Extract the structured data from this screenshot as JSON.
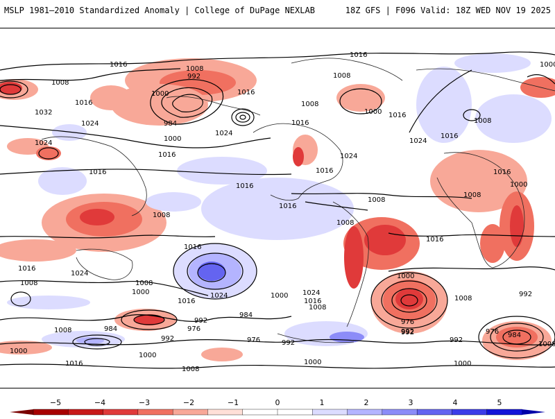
{
  "header": {
    "left_title": "MSLP 1981–2010 Standardized Anomaly | College of DuPage NEXLAB",
    "right_title": "18Z GFS | F096 Valid: 18Z WED NOV 19 2025"
  },
  "map": {
    "isobar_labels": [
      "1016",
      "1008",
      "992",
      "1000",
      "984",
      "1016",
      "1032",
      "1024",
      "1024",
      "1016",
      "1008",
      "1000",
      "1024",
      "1016",
      "1016",
      "1008",
      "1016",
      "1024",
      "1016",
      "1016",
      "1000",
      "1008",
      "1016",
      "1024",
      "1008",
      "1016",
      "1008",
      "1016",
      "1008",
      "1016",
      "1024",
      "1008",
      "1024",
      "1016",
      "1000",
      "1008",
      "1016",
      "1000",
      "992",
      "984",
      "976",
      "992",
      "984",
      "1016",
      "1008",
      "1024",
      "1016",
      "1008",
      "1000",
      "992",
      "1008",
      "976",
      "992",
      "1000",
      "1016",
      "976",
      "992",
      "1000",
      "1008",
      "1000",
      "976",
      "992",
      "1000",
      "984",
      "1008",
      "992",
      "1000",
      "1008",
      "1008",
      "1016",
      "1016",
      "1000"
    ]
  },
  "colorbar": {
    "ticks": [
      "−5",
      "−4",
      "−3",
      "−2",
      "−1",
      "0",
      "1",
      "2",
      "3",
      "4",
      "5"
    ],
    "colors": [
      "#a80000",
      "#c81818",
      "#e03a3a",
      "#f07060",
      "#f8a898",
      "#ffe0d8",
      "#ffffff",
      "#ffffff",
      "#dcdcff",
      "#b4b4ff",
      "#8c8cf8",
      "#6464f0",
      "#3c3ce8",
      "#1414d8"
    ]
  }
}
